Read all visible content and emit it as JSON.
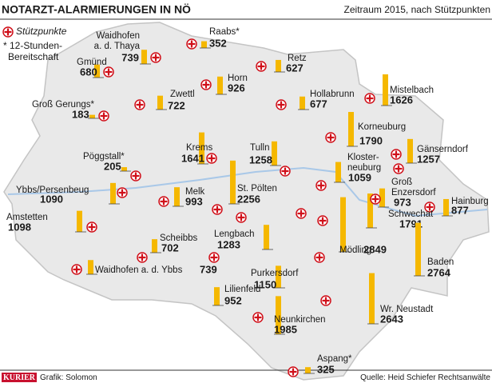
{
  "header": {
    "title": "NOTARZT-ALARMIERUNGEN IN NÖ",
    "subtitle": "Zeitraum 2015, nach Stützpunkten"
  },
  "legend": {
    "stations": "Stützpunkte",
    "note_lines": [
      "* 12-Stunden-",
      "Bereitschaft"
    ]
  },
  "bar_color": "#f5b800",
  "stations": [
    {
      "name_lines": [
        "Waidhofen",
        "a. d. Thaya"
      ],
      "value": 739
    },
    {
      "name_lines": [
        "Raabs*"
      ],
      "value": 352
    },
    {
      "name_lines": [
        "Retz"
      ],
      "value": 627
    },
    {
      "name_lines": [
        "Gmünd"
      ],
      "value": 680
    },
    {
      "name_lines": [
        "Horn"
      ],
      "value": 926
    },
    {
      "name_lines": [
        "Zwettl"
      ],
      "value": 722
    },
    {
      "name_lines": [
        "Hollabrunn"
      ],
      "value": 677
    },
    {
      "name_lines": [
        "Mistelbach"
      ],
      "value": 1626
    },
    {
      "name_lines": [
        "Groß Gerungs*"
      ],
      "value": 183
    },
    {
      "name_lines": [
        "Korneuburg"
      ],
      "value": 1790
    },
    {
      "name_lines": [
        "Gänserndorf"
      ],
      "value": 1257
    },
    {
      "name_lines": [
        "Krems"
      ],
      "value": 1641
    },
    {
      "name_lines": [
        "Tulln"
      ],
      "value": 1258
    },
    {
      "name_lines": [
        "Pöggstall*"
      ],
      "value": 205
    },
    {
      "name_lines": [
        "Kloster-",
        "neuburg"
      ],
      "value": 1059
    },
    {
      "name_lines": [
        "Groß",
        "Enzersdorf"
      ],
      "value": 973
    },
    {
      "name_lines": [
        "Ybbs/Persenbeug"
      ],
      "value": 1090
    },
    {
      "name_lines": [
        "Melk"
      ],
      "value": 993
    },
    {
      "name_lines": [
        "St. Pölten"
      ],
      "value": 2256
    },
    {
      "name_lines": [
        "Hainburg"
      ],
      "value": 877
    },
    {
      "name_lines": [
        "Schwechat"
      ],
      "value": 1791
    },
    {
      "name_lines": [
        "Amstetten"
      ],
      "value": 1098
    },
    {
      "name_lines": [
        "Mödling"
      ],
      "value": 2849
    },
    {
      "name_lines": [
        "Scheibbs"
      ],
      "value": 702
    },
    {
      "name_lines": [
        "Lengbach"
      ],
      "value": 1283
    },
    {
      "name_lines": [
        "Waidhofen a. d. Ybbs"
      ],
      "value": 739
    },
    {
      "name_lines": [
        "Baden"
      ],
      "value": 2764
    },
    {
      "name_lines": [
        "Purkersdorf"
      ],
      "value": 1150
    },
    {
      "name_lines": [
        "Lilienfeld"
      ],
      "value": 952
    },
    {
      "name_lines": [
        "Neunkirchen"
      ],
      "value": 1985
    },
    {
      "name_lines": [
        "Wr. Neustadt"
      ],
      "value": 2643
    },
    {
      "name_lines": [
        "Aspang*"
      ],
      "value": 325
    }
  ],
  "footer": {
    "brand": "KURIER",
    "credit": "Grafik: Solomon",
    "source": "Quelle: Heid Schiefer Rechtsanwälte"
  }
}
